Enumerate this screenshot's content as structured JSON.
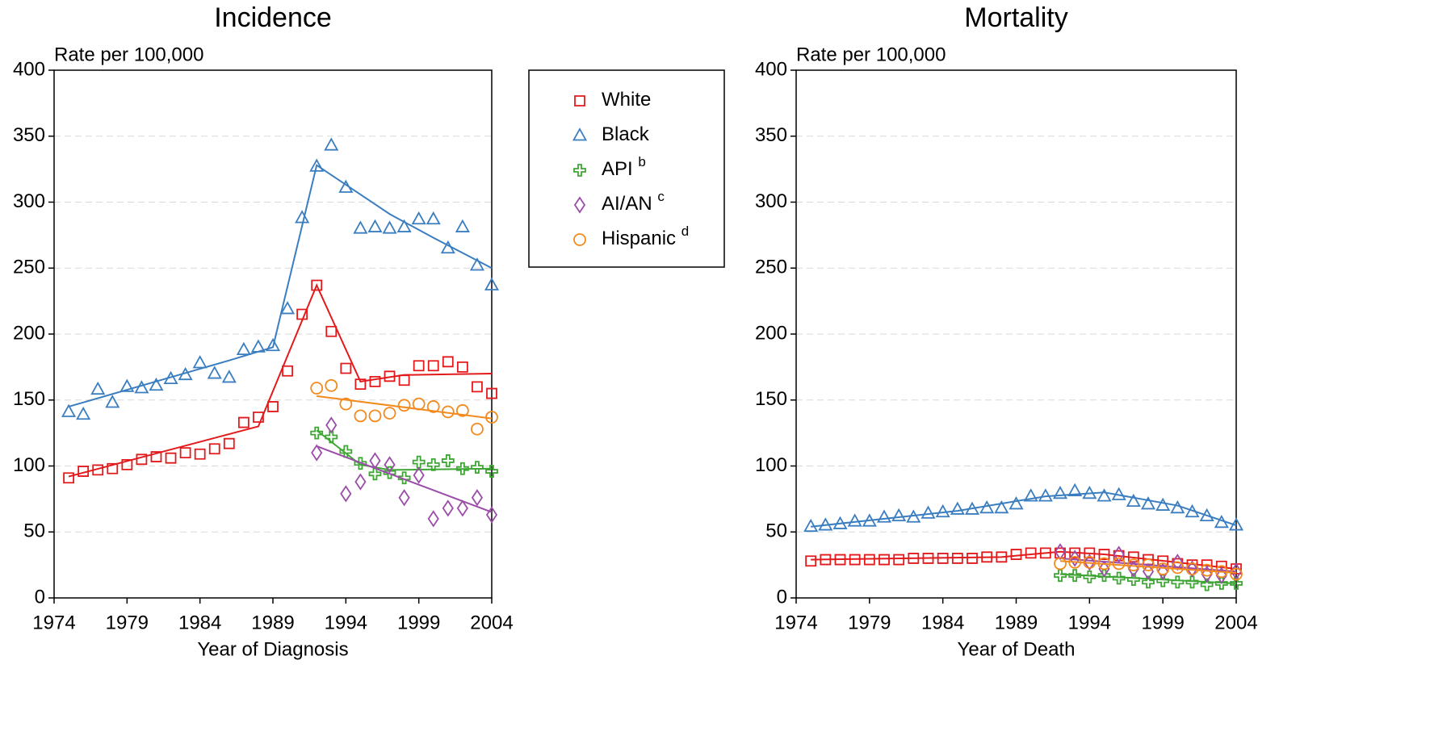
{
  "chart_data": [
    {
      "type": "line",
      "title": "Incidence",
      "ylabel": "Rate per 100,000",
      "xlabel": "Year of Diagnosis",
      "xlim": [
        1974,
        2004
      ],
      "xticks": [
        1974,
        1979,
        1984,
        1989,
        1994,
        1999,
        2004
      ],
      "ylim": [
        0,
        400
      ],
      "yticks": [
        0,
        50,
        100,
        150,
        200,
        250,
        300,
        350,
        400
      ],
      "grid": true,
      "legend": "outside-right",
      "series": [
        {
          "name": "White",
          "color": "#e31a1c",
          "marker": "square",
          "x": [
            1975,
            1976,
            1977,
            1978,
            1979,
            1980,
            1981,
            1982,
            1983,
            1984,
            1985,
            1986,
            1987,
            1988,
            1989,
            1990,
            1991,
            1992,
            1993,
            1994,
            1995,
            1996,
            1997,
            1998,
            1999,
            2000,
            2001,
            2002,
            2003,
            2004
          ],
          "values": [
            91,
            96,
            97,
            98,
            101,
            105,
            107,
            106,
            110,
            109,
            113,
            117,
            133,
            137,
            145,
            172,
            215,
            237,
            202,
            174,
            162,
            164,
            168,
            165,
            176,
            176,
            179,
            175,
            160,
            155
          ],
          "fit_x": [
            1975,
            1988,
            1992,
            1995,
            1998,
            2004
          ],
          "fit_values": [
            92,
            130,
            237,
            164,
            169,
            170
          ]
        },
        {
          "name": "Black",
          "color": "#3a7ec0",
          "marker": "triangle",
          "x": [
            1975,
            1976,
            1977,
            1978,
            1979,
            1980,
            1981,
            1982,
            1983,
            1984,
            1985,
            1986,
            1987,
            1988,
            1989,
            1990,
            1991,
            1992,
            1993,
            1994,
            1995,
            1996,
            1997,
            1998,
            1999,
            2000,
            2001,
            2002,
            2003,
            2004
          ],
          "values": [
            141,
            139,
            158,
            148,
            160,
            159,
            161,
            166,
            169,
            178,
            170,
            167,
            188,
            190,
            191,
            219,
            288,
            327,
            343,
            311,
            280,
            281,
            280,
            281,
            287,
            287,
            265,
            281,
            252,
            237
          ],
          "fit_x": [
            1975,
            1986,
            1989,
            1992,
            1997,
            2000,
            2004
          ],
          "fit_values": [
            145,
            180,
            190,
            328,
            291,
            273,
            250
          ]
        },
        {
          "name": "API",
          "note": "b",
          "color": "#3fa535",
          "marker": "plus",
          "x": [
            1992,
            1993,
            1994,
            1995,
            1996,
            1997,
            1998,
            1999,
            2000,
            2001,
            2002,
            2003,
            2004
          ],
          "values": [
            125,
            122,
            111,
            102,
            94,
            95,
            91,
            103,
            101,
            104,
            98,
            99,
            96
          ],
          "fit_x": [
            1992,
            1995,
            1997,
            2004
          ],
          "fit_values": [
            127,
            101,
            97,
            98
          ]
        },
        {
          "name": "AI/AN",
          "note": "c",
          "color": "#9b4ca8",
          "marker": "diamond",
          "x": [
            1992,
            1993,
            1994,
            1995,
            1996,
            1997,
            1998,
            1999,
            2000,
            2001,
            2002,
            2003,
            2004
          ],
          "values": [
            110,
            131,
            79,
            88,
            104,
            101,
            76,
            93,
            60,
            68,
            68,
            76,
            63
          ],
          "fit_x": [
            1992,
            2004
          ],
          "fit_values": [
            115,
            65
          ]
        },
        {
          "name": "Hispanic",
          "note": "d",
          "color": "#f28a1e",
          "marker": "circle",
          "x": [
            1992,
            1993,
            1994,
            1995,
            1996,
            1997,
            1998,
            1999,
            2000,
            2001,
            2002,
            2003,
            2004
          ],
          "values": [
            159,
            161,
            147,
            138,
            138,
            140,
            146,
            147,
            145,
            141,
            142,
            128,
            137
          ],
          "fit_x": [
            1992,
            2004
          ],
          "fit_values": [
            153,
            136
          ]
        }
      ]
    },
    {
      "type": "line",
      "title": "Mortality",
      "ylabel": "Rate per 100,000",
      "xlabel": "Year of Death",
      "xlim": [
        1974,
        2004
      ],
      "xticks": [
        1974,
        1979,
        1984,
        1989,
        1994,
        1999,
        2004
      ],
      "ylim": [
        0,
        400
      ],
      "yticks": [
        0,
        50,
        100,
        150,
        200,
        250,
        300,
        350,
        400
      ],
      "grid": true,
      "series": [
        {
          "color": "#e31a1c",
          "marker": "square",
          "x": [
            1975,
            1976,
            1977,
            1978,
            1979,
            1980,
            1981,
            1982,
            1983,
            1984,
            1985,
            1986,
            1987,
            1988,
            1989,
            1990,
            1991,
            1992,
            1993,
            1994,
            1995,
            1996,
            1997,
            1998,
            1999,
            2000,
            2001,
            2002,
            2003,
            2004
          ],
          "values": [
            28,
            29,
            29,
            29,
            29,
            29,
            29,
            30,
            30,
            30,
            30,
            30,
            31,
            31,
            33,
            34,
            34,
            34,
            34,
            34,
            33,
            32,
            31,
            29,
            28,
            26,
            25,
            25,
            24,
            22
          ],
          "fit_x": [
            1975,
            1988,
            1992,
            1995,
            2004
          ],
          "fit_values": [
            29,
            31,
            35,
            33,
            22
          ]
        },
        {
          "color": "#3a7ec0",
          "marker": "triangle",
          "x": [
            1975,
            1976,
            1977,
            1978,
            1979,
            1980,
            1981,
            1982,
            1983,
            1984,
            1985,
            1986,
            1987,
            1988,
            1989,
            1990,
            1991,
            1992,
            1993,
            1994,
            1995,
            1996,
            1997,
            1998,
            1999,
            2000,
            2001,
            2002,
            2003,
            2004
          ],
          "values": [
            54,
            55,
            56,
            58,
            58,
            61,
            62,
            61,
            64,
            65,
            67,
            67,
            68,
            68,
            71,
            77,
            77,
            79,
            81,
            79,
            77,
            78,
            73,
            71,
            70,
            68,
            65,
            62,
            57,
            55
          ],
          "fit_x": [
            1975,
            1985,
            1991,
            1995,
            2000,
            2004
          ],
          "fit_values": [
            54,
            66,
            77,
            80,
            70,
            55
          ]
        },
        {
          "color": "#3fa535",
          "marker": "plus",
          "x": [
            1992,
            1993,
            1994,
            1995,
            1996,
            1997,
            1998,
            1999,
            2000,
            2001,
            2002,
            2003,
            2004
          ],
          "values": [
            17,
            17,
            16,
            17,
            15,
            14,
            12,
            13,
            12,
            12,
            10,
            11,
            11
          ],
          "fit_x": [
            1992,
            2004
          ],
          "fit_values": [
            18,
            11
          ]
        },
        {
          "color": "#9b4ca8",
          "marker": "diamond",
          "x": [
            1992,
            1993,
            1994,
            1995,
            1996,
            1997,
            1998,
            1999,
            2000,
            2001,
            2002,
            2003,
            2004
          ],
          "values": [
            35,
            30,
            27,
            22,
            33,
            22,
            20,
            20,
            27,
            22,
            18,
            17,
            20
          ],
          "fit_x": [
            1992,
            2004
          ],
          "fit_values": [
            30,
            20
          ]
        },
        {
          "color": "#f28a1e",
          "marker": "circle",
          "x": [
            1992,
            1993,
            1994,
            1995,
            1996,
            1997,
            1998,
            1999,
            2000,
            2001,
            2002,
            2003,
            2004
          ],
          "values": [
            26,
            27,
            27,
            26,
            26,
            25,
            25,
            22,
            23,
            22,
            21,
            20,
            18
          ],
          "fit_x": [
            1992,
            2004
          ],
          "fit_values": [
            28,
            19
          ]
        }
      ]
    }
  ]
}
